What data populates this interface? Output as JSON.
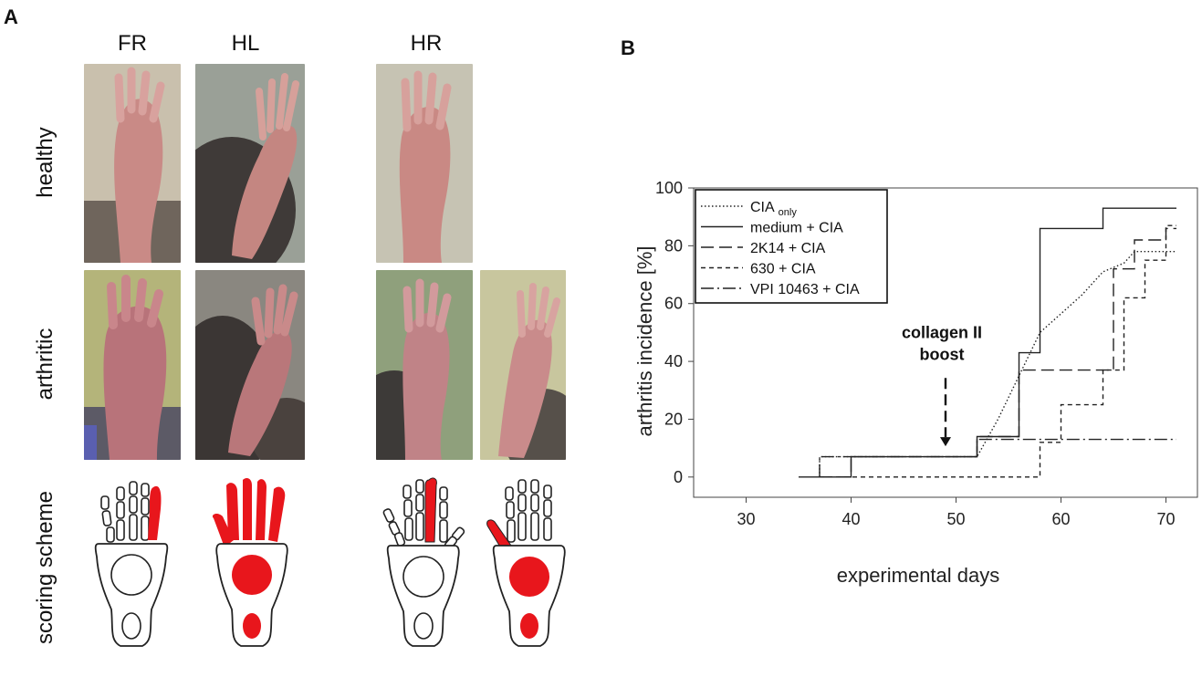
{
  "panel_a": {
    "letter": "A",
    "columns": [
      "FR",
      "HL",
      "HR"
    ],
    "rows": [
      "healthy",
      "arthritic",
      "scoring scheme"
    ]
  },
  "panel_b": {
    "letter": "B"
  },
  "chart_data": {
    "type": "line",
    "step": true,
    "xlabel": "experimental days",
    "ylabel": "arthritis incidence  [%]",
    "xlim": [
      25,
      73
    ],
    "ylim": [
      -7,
      100
    ],
    "xticks": [
      30,
      40,
      50,
      60,
      70
    ],
    "yticks": [
      0,
      20,
      40,
      60,
      80,
      100
    ],
    "grid": false,
    "legend_position": "top-left",
    "annotation": {
      "line1": "collagen II",
      "line2": "boost",
      "x": 49,
      "arrow_from_y": 33,
      "arrow_to_y": 10
    },
    "significance": "***",
    "colors": {
      "lines": "#222222",
      "paw_red": "#e8161c"
    },
    "series": [
      {
        "name": "CIA",
        "name_sub": "only",
        "dash": "1.5,2.5",
        "points": [
          [
            37,
            0
          ],
          [
            37,
            7
          ],
          [
            52,
            7
          ],
          [
            52,
            7
          ],
          [
            54,
            20
          ],
          [
            56,
            35
          ],
          [
            58,
            50
          ],
          [
            62,
            63
          ],
          [
            64,
            71
          ],
          [
            66,
            74
          ],
          [
            67,
            78
          ],
          [
            71,
            78
          ]
        ]
      },
      {
        "name": "medium + CIA",
        "dash": "",
        "points": [
          [
            35,
            0
          ],
          [
            40,
            0
          ],
          [
            40,
            7
          ],
          [
            52,
            7
          ],
          [
            52,
            14
          ],
          [
            56,
            14
          ],
          [
            56,
            43
          ],
          [
            58,
            43
          ],
          [
            58,
            86
          ],
          [
            64,
            86
          ],
          [
            64,
            93
          ],
          [
            71,
            93
          ]
        ]
      },
      {
        "name": "2K14 + CIA",
        "dash": "14,6",
        "points": [
          [
            37,
            0
          ],
          [
            40,
            0
          ],
          [
            40,
            7
          ],
          [
            52,
            7
          ],
          [
            52,
            14
          ],
          [
            56,
            14
          ],
          [
            56,
            37
          ],
          [
            65,
            37
          ],
          [
            65,
            72
          ],
          [
            67,
            72
          ],
          [
            67,
            82
          ],
          [
            70,
            82
          ],
          [
            70,
            86
          ],
          [
            71,
            86
          ]
        ]
      },
      {
        "name": "630 + CIA",
        "dash": "5,4",
        "points": [
          [
            37,
            0
          ],
          [
            58,
            0
          ],
          [
            58,
            12
          ],
          [
            60,
            12
          ],
          [
            60,
            25
          ],
          [
            64,
            25
          ],
          [
            64,
            37
          ],
          [
            66,
            37
          ],
          [
            66,
            62
          ],
          [
            68,
            62
          ],
          [
            68,
            75
          ],
          [
            70,
            75
          ],
          [
            70,
            87
          ],
          [
            71,
            87
          ]
        ]
      },
      {
        "name": "VPI 10463 + CIA",
        "dash": "14,4,2,4",
        "points": [
          [
            37,
            0
          ],
          [
            37,
            7
          ],
          [
            52,
            7
          ],
          [
            52,
            13
          ],
          [
            71,
            13
          ]
        ]
      }
    ]
  }
}
